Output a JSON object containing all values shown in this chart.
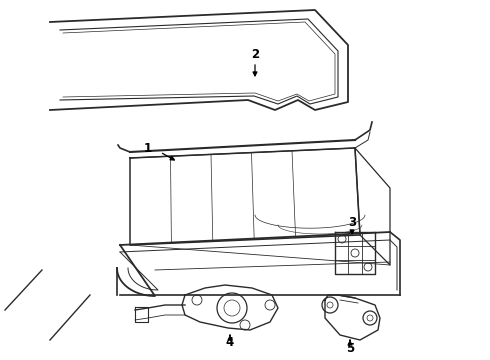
{
  "bg_color": "#ffffff",
  "line_color": "#2a2a2a",
  "lw": 1.0,
  "figsize": [
    4.9,
    3.6
  ],
  "dpi": 100
}
